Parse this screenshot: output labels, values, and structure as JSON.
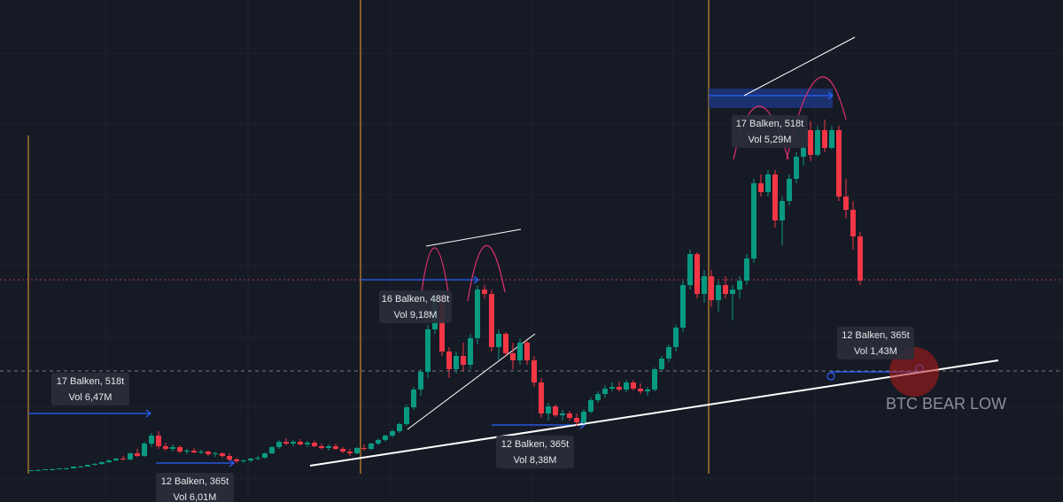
{
  "chart_data": {
    "type": "candlestick",
    "up_color": "#089981",
    "down_color": "#f23645",
    "ylim": [
      0,
      567
    ],
    "categories": [
      null,
      null,
      null,
      null,
      null,
      null,
      null,
      null,
      null,
      null,
      null,
      null,
      null,
      null,
      null,
      null,
      null,
      null,
      null,
      null,
      null,
      null,
      null,
      null,
      null,
      null,
      null,
      null,
      null,
      null,
      null,
      null,
      null,
      null,
      null,
      null,
      null,
      null,
      null,
      null,
      null,
      null,
      null,
      null,
      null,
      null,
      null,
      null,
      null,
      null,
      null,
      null,
      null,
      null,
      null,
      null,
      null,
      null,
      null,
      null,
      null,
      null,
      null,
      null,
      null,
      null,
      null,
      null,
      null,
      null,
      null,
      null,
      null,
      null,
      null,
      null,
      null,
      null,
      null,
      null,
      null,
      null,
      null,
      null,
      null,
      null,
      null,
      null,
      null,
      null,
      null,
      null,
      null,
      null,
      null,
      null,
      null,
      null,
      null,
      null,
      null,
      null,
      null,
      null,
      null,
      null,
      null,
      null,
      null,
      null,
      null,
      null,
      null,
      null,
      null,
      null,
      null,
      null
    ],
    "ohlc": [
      [
        35,
        36,
        35,
        36
      ],
      [
        36,
        37,
        35,
        36
      ],
      [
        36,
        37,
        36,
        37
      ],
      [
        37,
        38,
        36,
        37
      ],
      [
        37,
        38,
        37,
        38
      ],
      [
        38,
        39,
        37,
        38
      ],
      [
        38,
        40,
        38,
        40
      ],
      [
        40,
        41,
        39,
        40
      ],
      [
        40,
        42,
        40,
        42
      ],
      [
        42,
        44,
        41,
        43
      ],
      [
        43,
        46,
        42,
        45
      ],
      [
        45,
        48,
        44,
        47
      ],
      [
        47,
        50,
        46,
        49
      ],
      [
        49,
        52,
        47,
        48
      ],
      [
        48,
        56,
        47,
        55
      ],
      [
        55,
        60,
        51,
        52
      ],
      [
        52,
        68,
        51,
        66
      ],
      [
        66,
        78,
        62,
        75
      ],
      [
        75,
        80,
        60,
        63
      ],
      [
        63,
        67,
        58,
        60
      ],
      [
        60,
        65,
        57,
        62
      ],
      [
        62,
        64,
        55,
        57
      ],
      [
        57,
        60,
        54,
        58
      ],
      [
        58,
        61,
        55,
        56
      ],
      [
        56,
        59,
        54,
        57
      ],
      [
        57,
        58,
        52,
        54
      ],
      [
        54,
        57,
        51,
        55
      ],
      [
        55,
        56,
        50,
        52
      ],
      [
        52,
        55,
        46,
        48
      ],
      [
        48,
        50,
        44,
        46
      ],
      [
        46,
        48,
        44,
        47
      ],
      [
        47,
        50,
        45,
        49
      ],
      [
        49,
        52,
        47,
        50
      ],
      [
        50,
        56,
        49,
        55
      ],
      [
        55,
        63,
        54,
        62
      ],
      [
        62,
        70,
        60,
        68
      ],
      [
        68,
        72,
        64,
        66
      ],
      [
        66,
        70,
        63,
        68
      ],
      [
        68,
        71,
        64,
        65
      ],
      [
        65,
        69,
        62,
        67
      ],
      [
        67,
        69,
        62,
        63
      ],
      [
        63,
        66,
        59,
        61
      ],
      [
        61,
        65,
        58,
        63
      ],
      [
        63,
        66,
        59,
        60
      ],
      [
        60,
        62,
        55,
        57
      ],
      [
        57,
        60,
        52,
        55
      ],
      [
        55,
        62,
        54,
        61
      ],
      [
        61,
        65,
        58,
        60
      ],
      [
        60,
        67,
        59,
        66
      ],
      [
        66,
        72,
        64,
        70
      ],
      [
        70,
        76,
        68,
        75
      ],
      [
        75,
        82,
        73,
        80
      ],
      [
        80,
        90,
        78,
        88
      ],
      [
        88,
        110,
        86,
        107
      ],
      [
        107,
        130,
        104,
        127
      ],
      [
        127,
        150,
        120,
        147
      ],
      [
        147,
        200,
        140,
        195
      ],
      [
        195,
        235,
        190,
        230
      ],
      [
        230,
        232,
        165,
        170
      ],
      [
        170,
        175,
        140,
        150
      ],
      [
        150,
        170,
        145,
        165
      ],
      [
        165,
        180,
        148,
        155
      ],
      [
        155,
        190,
        150,
        185
      ],
      [
        185,
        245,
        178,
        240
      ],
      [
        240,
        245,
        230,
        235
      ],
      [
        235,
        240,
        170,
        175
      ],
      [
        175,
        195,
        160,
        190
      ],
      [
        190,
        192,
        165,
        168
      ],
      [
        168,
        180,
        150,
        160
      ],
      [
        160,
        185,
        155,
        180
      ],
      [
        180,
        183,
        155,
        160
      ],
      [
        160,
        165,
        130,
        135
      ],
      [
        135,
        140,
        95,
        100
      ],
      [
        100,
        112,
        92,
        108
      ],
      [
        108,
        110,
        96,
        98
      ],
      [
        98,
        104,
        92,
        100
      ],
      [
        100,
        103,
        92,
        95
      ],
      [
        95,
        100,
        86,
        90
      ],
      [
        90,
        105,
        88,
        102
      ],
      [
        102,
        118,
        100,
        115
      ],
      [
        115,
        125,
        112,
        122
      ],
      [
        122,
        132,
        118,
        128
      ],
      [
        128,
        135,
        125,
        130
      ],
      [
        130,
        136,
        125,
        127
      ],
      [
        127,
        138,
        124,
        135
      ],
      [
        135,
        138,
        126,
        128
      ],
      [
        128,
        134,
        122,
        125
      ],
      [
        125,
        130,
        120,
        127
      ],
      [
        127,
        152,
        125,
        150
      ],
      [
        150,
        165,
        148,
        162
      ],
      [
        162,
        178,
        158,
        175
      ],
      [
        175,
        200,
        170,
        197
      ],
      [
        197,
        250,
        192,
        245
      ],
      [
        245,
        285,
        240,
        280
      ],
      [
        280,
        282,
        230,
        235
      ],
      [
        235,
        262,
        225,
        255
      ],
      [
        255,
        262,
        220,
        228
      ],
      [
        228,
        250,
        215,
        245
      ],
      [
        245,
        255,
        230,
        235
      ],
      [
        235,
        245,
        205,
        240
      ],
      [
        240,
        255,
        230,
        250
      ],
      [
        250,
        280,
        245,
        275
      ],
      [
        275,
        365,
        270,
        360
      ],
      [
        360,
        370,
        345,
        350
      ],
      [
        350,
        375,
        345,
        370
      ],
      [
        370,
        375,
        310,
        318
      ],
      [
        318,
        345,
        290,
        340
      ],
      [
        340,
        370,
        335,
        365
      ],
      [
        365,
        395,
        360,
        390
      ],
      [
        390,
        405,
        380,
        400
      ],
      [
        420,
        430,
        385,
        392
      ],
      [
        392,
        425,
        390,
        420
      ],
      [
        420,
        432,
        395,
        400
      ],
      [
        400,
        425,
        398,
        420
      ],
      [
        420,
        425,
        340,
        345
      ],
      [
        345,
        365,
        320,
        330
      ],
      [
        330,
        340,
        285,
        300
      ],
      [
        300,
        305,
        245,
        250
      ]
    ],
    "annotations": [
      [
        "17 Balken, 518t",
        "Vol 6,47M"
      ],
      [
        "12 Balken, 365t",
        "Vol 6,01M"
      ],
      [
        "16 Balken, 488t",
        "Vol 9,18M"
      ],
      [
        "12 Balken, 365t",
        "Vol 8,38M"
      ],
      [
        "17 Balken, 518t",
        "Vol 5,29M"
      ],
      [
        "12 Balken, 365t",
        "Vol 1,43M"
      ]
    ],
    "label": "BTC BEAR LOW"
  }
}
